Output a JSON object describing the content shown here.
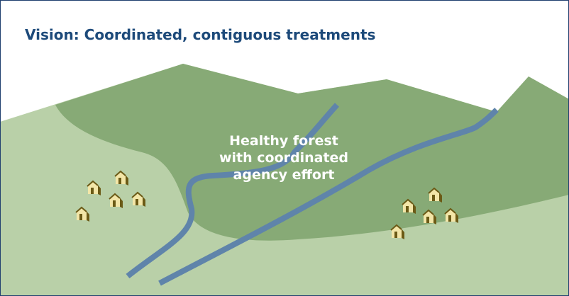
{
  "header": {
    "title": "Vision: Coordinated, contiguous treatments"
  },
  "label": {
    "lines": [
      "Healthy forest",
      "with coordinated",
      "agency effort"
    ]
  }
}
